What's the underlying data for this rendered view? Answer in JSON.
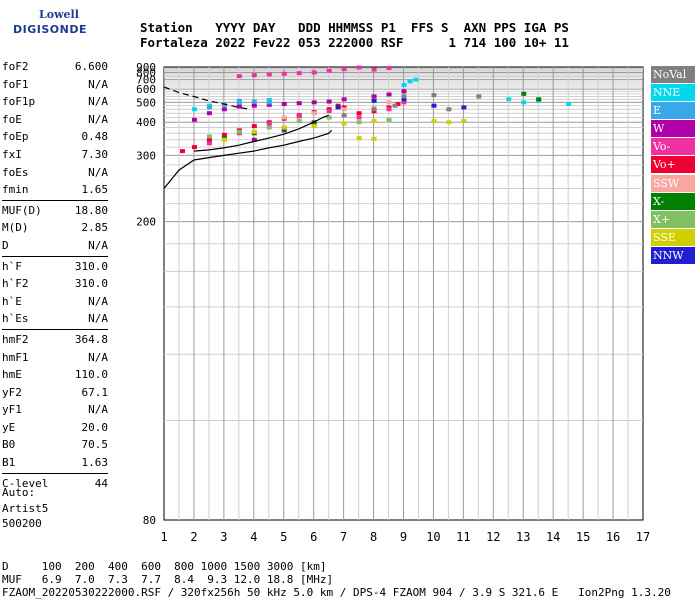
{
  "logo": {
    "line1": "Lowell",
    "line2": "DIGISONDE"
  },
  "header": {
    "line1": "Station   YYYY DAY   DDD HHMMSS P1  FFS S  AXN PPS IGA PS",
    "line2": "Fortaleza 2022 Fev22 053 222000 RSF      1 714 100 10+ 11"
  },
  "params": [
    [
      {
        "k": "foF2",
        "v": "6.600"
      },
      {
        "k": "foF1",
        "v": "N/A"
      },
      {
        "k": "foF1p",
        "v": "N/A"
      },
      {
        "k": "foE",
        "v": "N/A"
      },
      {
        "k": "foEp",
        "v": "0.48"
      },
      {
        "k": "fxI",
        "v": "7.30"
      },
      {
        "k": "foEs",
        "v": "N/A"
      },
      {
        "k": "fmin",
        "v": "1.65"
      }
    ],
    [
      {
        "k": "MUF(D)",
        "v": "18.80"
      },
      {
        "k": "M(D)",
        "v": "2.85"
      },
      {
        "k": "D",
        "v": "N/A"
      }
    ],
    [
      {
        "k": "h`F",
        "v": "310.0"
      },
      {
        "k": "h`F2",
        "v": "310.0"
      },
      {
        "k": "h`E",
        "v": "N/A"
      },
      {
        "k": "h`Es",
        "v": "N/A"
      }
    ],
    [
      {
        "k": "hmF2",
        "v": "364.8"
      },
      {
        "k": "hmF1",
        "v": "N/A"
      },
      {
        "k": "hmE",
        "v": "110.0"
      },
      {
        "k": "yF2",
        "v": "67.1"
      },
      {
        "k": "yF1",
        "v": "N/A"
      },
      {
        "k": "yE",
        "v": "20.0"
      },
      {
        "k": "B0",
        "v": "70.5"
      },
      {
        "k": "B1",
        "v": "1.63"
      }
    ],
    [
      {
        "k": "C-level",
        "v": "44"
      }
    ]
  ],
  "auto": {
    "l1": "Auto:",
    "l2": "Artist5",
    "l3": "500200"
  },
  "footer": {
    "d_line": "D     100  200  400  600  800 1000 1500 3000 [km]",
    "muf_line": "MUF   6.9  7.0  7.3  7.7  8.4  9.3 12.0 18.8 [MHz]",
    "file_line": "FZAOM_20220530222000.RSF / 320fx256h 50 kHz 5.0 km / DPS-4 FZAOM 904 / 3.9 S 321.6 E   Ion2Png 1.3.20"
  },
  "legend": [
    {
      "label": "NoVal",
      "color": "#808080"
    },
    {
      "label": "NNE",
      "color": "#00d8f0"
    },
    {
      "label": "E",
      "color": "#3aa8e8"
    },
    {
      "label": "W",
      "color": "#b000a8"
    },
    {
      "label": "Vo-",
      "color": "#f030a0"
    },
    {
      "label": "Vo+",
      "color": "#f00030"
    },
    {
      "label": "SSW",
      "color": "#f8a8a0"
    },
    {
      "label": "X-",
      "color": "#008000"
    },
    {
      "label": "X+",
      "color": "#80c060"
    },
    {
      "label": "SSE",
      "color": "#d0d000"
    },
    {
      "label": "NNW",
      "color": "#2020d0"
    }
  ],
  "chart_data": {
    "type": "scatter",
    "x_ticks": [
      1,
      2,
      3,
      4,
      5,
      6,
      7,
      8,
      9,
      10,
      11,
      12,
      13,
      14,
      15,
      16,
      17
    ],
    "y_ticks": [
      80,
      200,
      300,
      400,
      500,
      600,
      700,
      800,
      900
    ],
    "xlim": [
      1,
      17
    ],
    "ylim": [
      80,
      900
    ],
    "y_scale": "reciprocal",
    "grid": true,
    "legend_position": "right",
    "series": [
      {
        "name": "W",
        "color": "#b000a8",
        "points": [
          [
            2.0,
            410
          ],
          [
            2.5,
            440
          ],
          [
            3.0,
            460
          ],
          [
            3.5,
            475
          ],
          [
            4.0,
            480
          ],
          [
            4.5,
            485
          ],
          [
            5.0,
            490
          ],
          [
            5.5,
            495
          ],
          [
            6.0,
            500
          ],
          [
            6.5,
            505
          ],
          [
            7.0,
            520
          ],
          [
            8.0,
            540
          ],
          [
            8.5,
            555
          ],
          [
            9.0,
            580
          ],
          [
            4.0,
            340
          ],
          [
            5.0,
            370
          ],
          [
            6.0,
            400
          ]
        ]
      },
      {
        "name": "Vo+",
        "color": "#f00030",
        "points": [
          [
            1.6,
            310
          ],
          [
            2.0,
            320
          ],
          [
            2.5,
            340
          ],
          [
            3.0,
            355
          ],
          [
            3.5,
            370
          ],
          [
            4.0,
            385
          ],
          [
            4.5,
            400
          ],
          [
            5.0,
            415
          ],
          [
            5.5,
            430
          ],
          [
            6.0,
            445
          ],
          [
            6.5,
            460
          ],
          [
            6.8,
            480
          ],
          [
            7.0,
            470
          ],
          [
            7.5,
            440
          ],
          [
            8.0,
            450
          ],
          [
            8.5,
            470
          ],
          [
            8.8,
            490
          ]
        ]
      },
      {
        "name": "Vo-",
        "color": "#f030a0",
        "points": [
          [
            2.5,
            330
          ],
          [
            3.5,
            360
          ],
          [
            4.5,
            395
          ],
          [
            5.5,
            425
          ],
          [
            6.5,
            450
          ],
          [
            7.5,
            420
          ],
          [
            8.5,
            460
          ],
          [
            9.0,
            500
          ],
          [
            3.5,
            745
          ],
          [
            4.0,
            760
          ],
          [
            4.5,
            770
          ],
          [
            5.0,
            780
          ],
          [
            5.5,
            790
          ],
          [
            6.0,
            800
          ],
          [
            6.5,
            830
          ],
          [
            7.0,
            860
          ],
          [
            7.5,
            890
          ],
          [
            8.0,
            850
          ],
          [
            8.5,
            880
          ]
        ]
      },
      {
        "name": "NNE",
        "color": "#00d8f0",
        "points": [
          [
            2.0,
            460
          ],
          [
            2.5,
            480
          ],
          [
            3.5,
            500
          ],
          [
            4.5,
            515
          ],
          [
            9.0,
            640
          ],
          [
            9.2,
            680
          ],
          [
            9.4,
            700
          ],
          [
            12.5,
            520
          ],
          [
            13.0,
            500
          ],
          [
            13.5,
            510
          ],
          [
            14.5,
            490
          ]
        ]
      },
      {
        "name": "E",
        "color": "#3aa8e8",
        "points": [
          [
            3.5,
            510
          ],
          [
            4.0,
            505
          ],
          [
            4.5,
            500
          ],
          [
            2.5,
            470
          ],
          [
            3.0,
            485
          ]
        ]
      },
      {
        "name": "X+",
        "color": "#80c060",
        "points": [
          [
            2.5,
            350
          ],
          [
            3.5,
            365
          ],
          [
            4.5,
            380
          ],
          [
            5.5,
            405
          ],
          [
            6.5,
            420
          ],
          [
            7.5,
            400
          ],
          [
            8.5,
            410
          ]
        ]
      },
      {
        "name": "X-",
        "color": "#008000",
        "points": [
          [
            3.0,
            345
          ],
          [
            4.0,
            360
          ],
          [
            5.0,
            375
          ],
          [
            6.0,
            395
          ],
          [
            13.0,
            560
          ],
          [
            13.5,
            520
          ]
        ]
      },
      {
        "name": "SSE",
        "color": "#d0d000",
        "points": [
          [
            3.0,
            340
          ],
          [
            4.0,
            365
          ],
          [
            5.0,
            380
          ],
          [
            6.0,
            385
          ],
          [
            7.0,
            395
          ],
          [
            8.0,
            405
          ],
          [
            10.0,
            405
          ],
          [
            10.5,
            400
          ],
          [
            11.0,
            405
          ],
          [
            7.5,
            345
          ],
          [
            8.0,
            343
          ]
        ]
      },
      {
        "name": "SSW",
        "color": "#f8a8a0",
        "points": [
          [
            5.0,
            420
          ],
          [
            6.0,
            440
          ],
          [
            7.0,
            460
          ],
          [
            8.0,
            470
          ],
          [
            8.5,
            500
          ]
        ]
      },
      {
        "name": "NNW",
        "color": "#2020d0",
        "points": [
          [
            9.0,
            520
          ],
          [
            10.0,
            480
          ],
          [
            11.0,
            470
          ],
          [
            6.8,
            470
          ],
          [
            8.0,
            510
          ]
        ]
      },
      {
        "name": "NoVal",
        "color": "#808080",
        "points": [
          [
            7.0,
            430
          ],
          [
            8.0,
            460
          ],
          [
            8.7,
            480
          ],
          [
            9.0,
            540
          ],
          [
            10.0,
            550
          ],
          [
            10.5,
            460
          ],
          [
            11.5,
            540
          ]
        ]
      }
    ],
    "curves": [
      {
        "style": "dashed",
        "points": [
          [
            1.0,
            620
          ],
          [
            1.5,
            570
          ],
          [
            2.0,
            540
          ],
          [
            2.5,
            510
          ],
          [
            3.0,
            490
          ],
          [
            3.5,
            470
          ],
          [
            3.8,
            462
          ]
        ]
      },
      {
        "style": "solid",
        "points": [
          [
            1.0,
            240
          ],
          [
            1.5,
            270
          ],
          [
            2.0,
            290
          ],
          [
            2.5,
            295
          ],
          [
            3.0,
            300
          ],
          [
            3.5,
            305
          ],
          [
            4.0,
            310
          ],
          [
            4.5,
            318
          ],
          [
            5.0,
            325
          ],
          [
            5.5,
            335
          ],
          [
            6.0,
            345
          ],
          [
            6.5,
            360
          ],
          [
            6.6,
            370
          ]
        ]
      },
      {
        "style": "solid",
        "points": [
          [
            2.0,
            310
          ],
          [
            2.5,
            313
          ],
          [
            3.0,
            318
          ],
          [
            3.5,
            325
          ],
          [
            4.0,
            335
          ],
          [
            4.5,
            345
          ],
          [
            5.0,
            357
          ],
          [
            5.5,
            375
          ],
          [
            6.0,
            400
          ],
          [
            6.3,
            420
          ],
          [
            6.5,
            430
          ]
        ]
      }
    ]
  }
}
